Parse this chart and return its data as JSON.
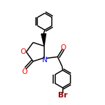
{
  "background_color": "#ffffff",
  "atom_colors": {
    "O": "#ff0000",
    "N": "#0000ff",
    "Br": "#8B0000"
  },
  "font_size": 6.5,
  "line_width": 1.1,
  "figsize": [
    1.52,
    1.52
  ],
  "dpi": 100
}
